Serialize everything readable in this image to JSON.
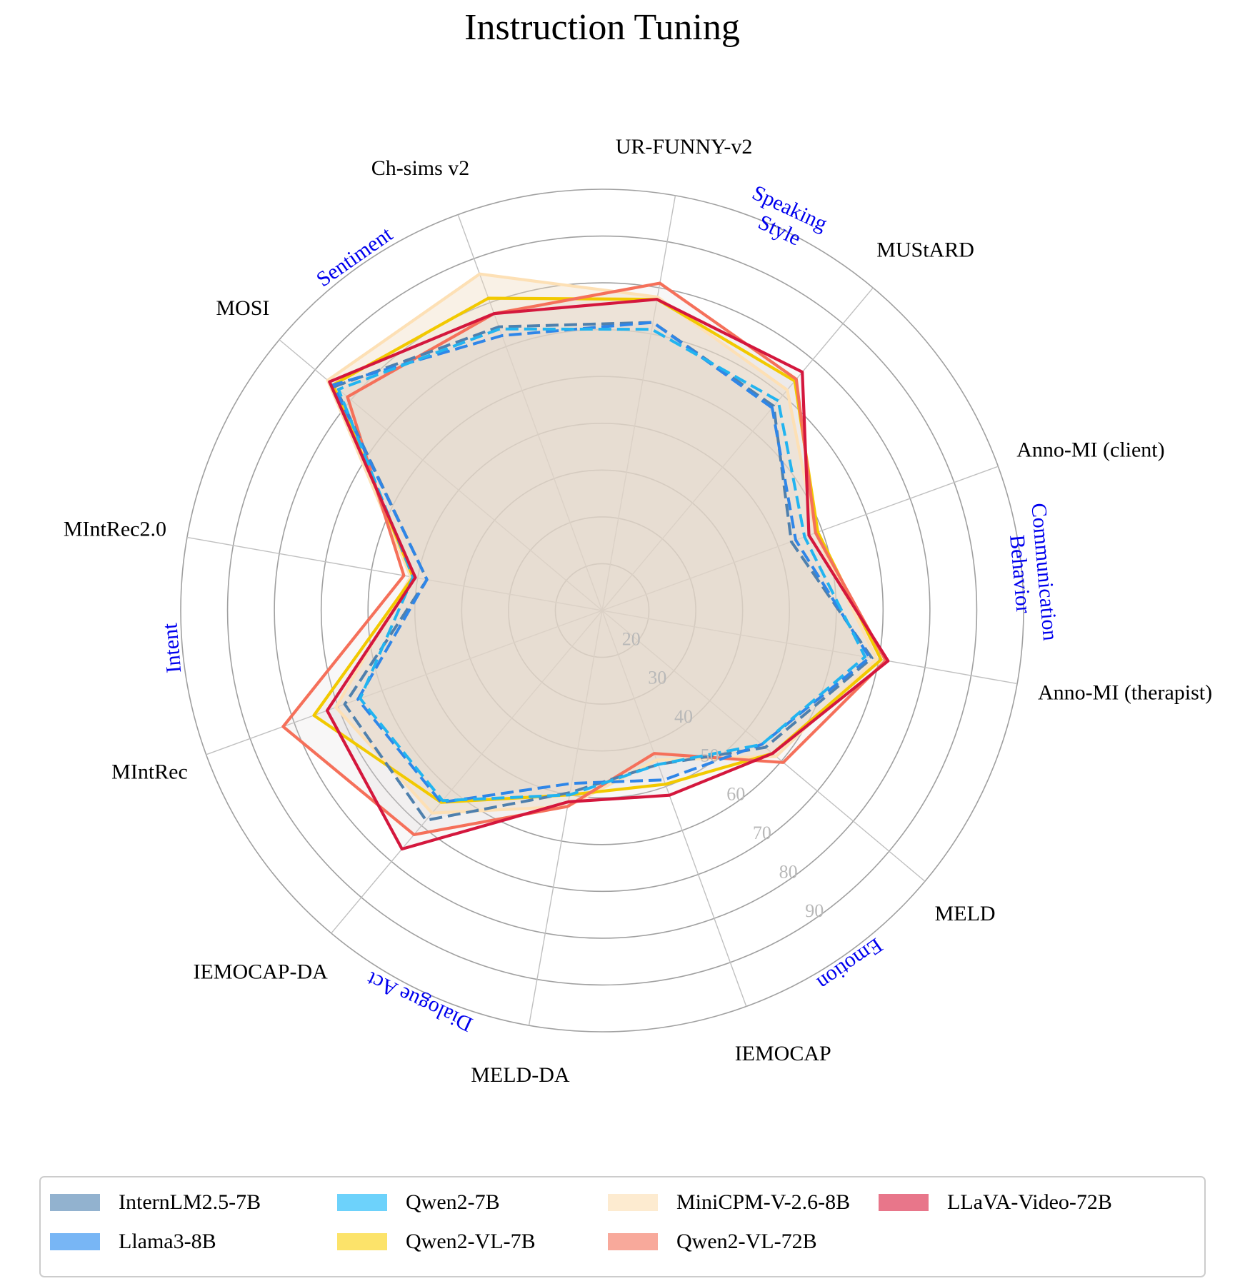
{
  "chart_data": {
    "type": "radar",
    "title": "Instruction Tuning",
    "axes": [
      "MUStARD",
      "UR-FUNNY-v2",
      "Ch-sims v2",
      "MOSI",
      "MIntRec2.0",
      "MIntRec",
      "IEMOCAP-DA",
      "MELD-DA",
      "IEMOCAP",
      "MELD",
      "Anno-MI (therapist)",
      "Anno-MI (client)"
    ],
    "groups": [
      {
        "label": "Speaking\nStyle"
      },
      {
        "label": "Sentiment"
      },
      {
        "label": "Intent"
      },
      {
        "label": "Dialogue Act"
      },
      {
        "label": "Emotion"
      },
      {
        "label": "Communication\nBehavior"
      }
    ],
    "rlim": [
      10,
      100
    ],
    "ticks": [
      20,
      30,
      40,
      50,
      60,
      70,
      80,
      90
    ],
    "series": [
      {
        "name": "InternLM2.5-7B",
        "color": "#4f80ad",
        "legend_color": "#92b2cf",
        "dashed": true,
        "values": [
          67,
          72.5,
          74.5,
          84.5,
          48,
          68.5,
          68.5,
          49.5,
          45,
          55.5,
          68.5,
          53
        ]
      },
      {
        "name": "Llama3-8B",
        "color": "#2f86e8",
        "legend_color": "#78b6f5",
        "dashed": true,
        "values": [
          66.5,
          72.5,
          72.5,
          85,
          48,
          65.5,
          63.5,
          47.5,
          48.5,
          54.5,
          68,
          54
        ]
      },
      {
        "name": "Qwen2-7B",
        "color": "#22b4f0",
        "legend_color": "#6dd2fb",
        "dashed": true,
        "values": [
          68.5,
          71,
          74,
          83.5,
          51,
          65,
          63,
          50,
          45,
          54.5,
          67,
          56
        ]
      },
      {
        "name": "MiniCPM-V-2.6-8B",
        "color": "#fde0b5",
        "legend_color": "#fdebd0",
        "dashed": false,
        "fill": true,
        "values": [
          71.5,
          78,
          86.5,
          86.5,
          51.5,
          70.5,
          66.5,
          52.5,
          44,
          58.5,
          69.5,
          58.5
        ]
      },
      {
        "name": "Qwen2-VL-7B",
        "color": "#f2c900",
        "legend_color": "#fce36a",
        "dashed": false,
        "values": [
          74,
          77.5,
          81,
          85,
          51,
          75.5,
          63.5,
          50,
          49.5,
          57.5,
          70.5,
          59
        ]
      },
      {
        "name": "Qwen2-VL-72B",
        "color": "#f5705a",
        "legend_color": "#f8a99b",
        "dashed": false,
        "values": [
          74.5,
          81,
          77.5,
          81,
          53,
          82.5,
          72.5,
          52.5,
          42.5,
          60.5,
          71.5,
          58.5
        ]
      },
      {
        "name": "LLaVA-Video-72B",
        "color": "#d4173d",
        "legend_color": "#e8768a",
        "dashed": false,
        "values": [
          76.5,
          77.5,
          77.5,
          86,
          50.5,
          72.5,
          76.5,
          51.5,
          52,
          57.5,
          72,
          57
        ]
      }
    ],
    "legend_order": [
      "InternLM2.5-7B",
      "Llama3-8B",
      "Qwen2-7B",
      "Qwen2-VL-7B",
      "MiniCPM-V-2.6-8B",
      "Qwen2-VL-72B",
      "LLaVA-Video-72B"
    ],
    "legend_position": "bottom",
    "grid": true
  }
}
